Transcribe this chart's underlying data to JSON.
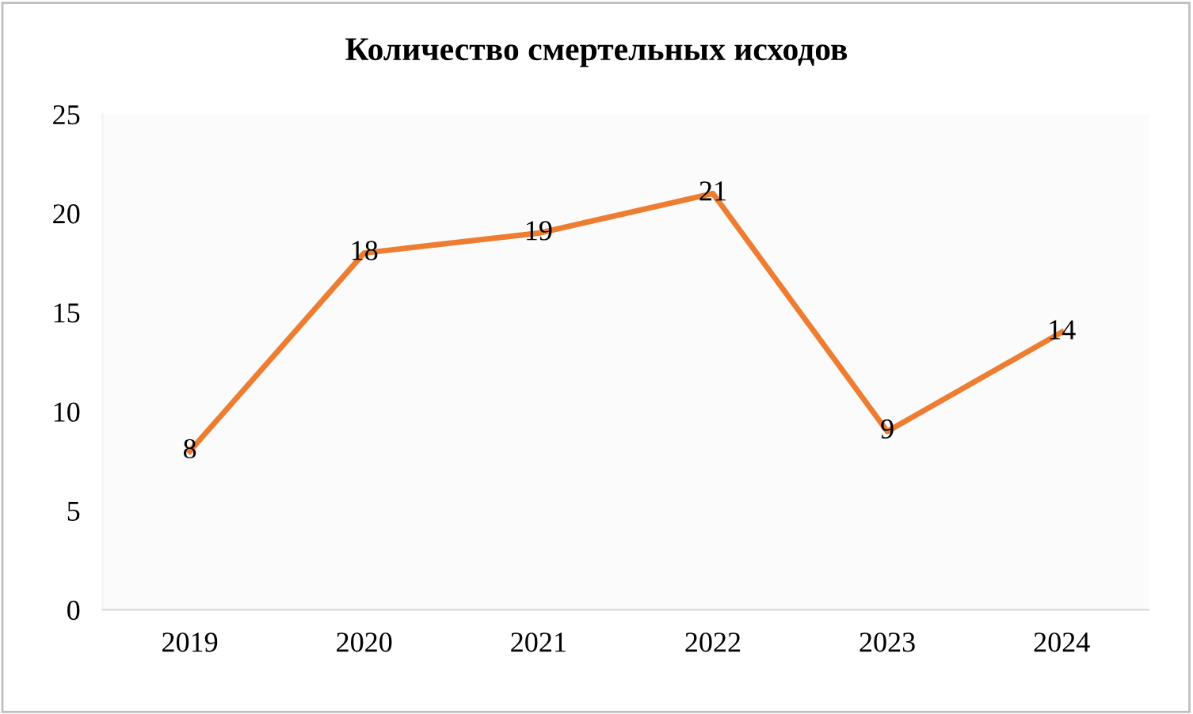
{
  "chart_data": {
    "type": "line",
    "title": "Количество смертельных исходов",
    "categories": [
      "2019",
      "2020",
      "2021",
      "2022",
      "2023",
      "2024"
    ],
    "series": [
      {
        "color": "#ed7d31",
        "values": [
          8,
          18,
          19,
          21,
          9,
          14
        ]
      }
    ],
    "ylim": [
      0,
      25
    ],
    "yticks": [
      0,
      5,
      10,
      15,
      20,
      25
    ],
    "data_labels": true,
    "grid": false,
    "legend": false,
    "marker": "none",
    "line_style": "solid"
  }
}
